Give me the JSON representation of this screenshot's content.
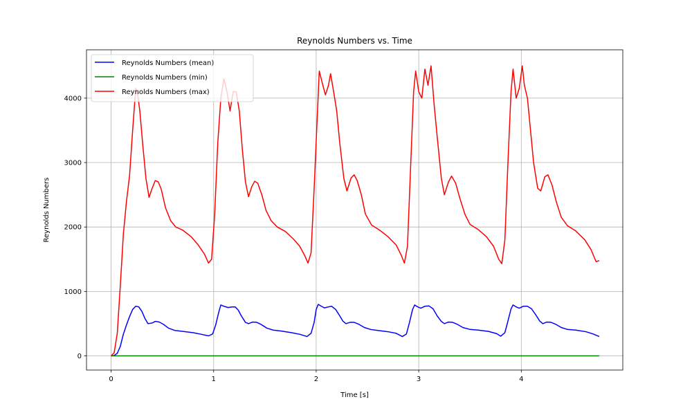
{
  "chart_data": {
    "type": "line",
    "title": "Reynolds Numbers vs. Time",
    "xlabel": "Time [s]",
    "ylabel": "Reynolds Numbers",
    "xlim": [
      -0.24,
      4.99
    ],
    "ylim": [
      -220,
      4750
    ],
    "xticks": [
      0,
      1,
      2,
      3,
      4
    ],
    "yticks": [
      0,
      1000,
      2000,
      3000,
      4000
    ],
    "grid": true,
    "legend_position": "top-left",
    "series": [
      {
        "name": "Reynolds Numbers (mean)",
        "color": "#0000ff",
        "points": [
          [
            0,
            0
          ],
          [
            0.03,
            5
          ],
          [
            0.06,
            40
          ],
          [
            0.09,
            150
          ],
          [
            0.12,
            340
          ],
          [
            0.15,
            480
          ],
          [
            0.18,
            610
          ],
          [
            0.21,
            720
          ],
          [
            0.24,
            770
          ],
          [
            0.27,
            760
          ],
          [
            0.3,
            690
          ],
          [
            0.33,
            580
          ],
          [
            0.36,
            500
          ],
          [
            0.4,
            510
          ],
          [
            0.43,
            535
          ],
          [
            0.47,
            525
          ],
          [
            0.51,
            490
          ],
          [
            0.56,
            430
          ],
          [
            0.62,
            395
          ],
          [
            0.7,
            380
          ],
          [
            0.8,
            360
          ],
          [
            0.88,
            335
          ],
          [
            0.95,
            310
          ],
          [
            0.99,
            340
          ],
          [
            1.02,
            480
          ],
          [
            1.05,
            680
          ],
          [
            1.07,
            790
          ],
          [
            1.1,
            770
          ],
          [
            1.14,
            750
          ],
          [
            1.18,
            760
          ],
          [
            1.21,
            760
          ],
          [
            1.24,
            710
          ],
          [
            1.27,
            620
          ],
          [
            1.31,
            520
          ],
          [
            1.34,
            500
          ],
          [
            1.38,
            525
          ],
          [
            1.42,
            520
          ],
          [
            1.46,
            490
          ],
          [
            1.52,
            430
          ],
          [
            1.58,
            400
          ],
          [
            1.66,
            385
          ],
          [
            1.76,
            360
          ],
          [
            1.84,
            335
          ],
          [
            1.91,
            300
          ],
          [
            1.95,
            350
          ],
          [
            1.98,
            520
          ],
          [
            2.0,
            720
          ],
          [
            2.02,
            800
          ],
          [
            2.05,
            770
          ],
          [
            2.08,
            745
          ],
          [
            2.12,
            760
          ],
          [
            2.15,
            770
          ],
          [
            2.19,
            720
          ],
          [
            2.23,
            620
          ],
          [
            2.26,
            540
          ],
          [
            2.29,
            500
          ],
          [
            2.33,
            520
          ],
          [
            2.37,
            520
          ],
          [
            2.41,
            495
          ],
          [
            2.47,
            440
          ],
          [
            2.53,
            410
          ],
          [
            2.6,
            395
          ],
          [
            2.7,
            375
          ],
          [
            2.78,
            350
          ],
          [
            2.84,
            300
          ],
          [
            2.88,
            340
          ],
          [
            2.91,
            520
          ],
          [
            2.94,
            720
          ],
          [
            2.96,
            790
          ],
          [
            2.99,
            760
          ],
          [
            3.02,
            740
          ],
          [
            3.06,
            770
          ],
          [
            3.1,
            775
          ],
          [
            3.14,
            730
          ],
          [
            3.18,
            620
          ],
          [
            3.22,
            535
          ],
          [
            3.25,
            500
          ],
          [
            3.29,
            525
          ],
          [
            3.33,
            520
          ],
          [
            3.37,
            495
          ],
          [
            3.43,
            440
          ],
          [
            3.5,
            410
          ],
          [
            3.58,
            400
          ],
          [
            3.68,
            380
          ],
          [
            3.76,
            345
          ],
          [
            3.8,
            305
          ],
          [
            3.84,
            360
          ],
          [
            3.87,
            540
          ],
          [
            3.9,
            730
          ],
          [
            3.92,
            790
          ],
          [
            3.95,
            760
          ],
          [
            3.98,
            740
          ],
          [
            4.02,
            770
          ],
          [
            4.06,
            770
          ],
          [
            4.1,
            730
          ],
          [
            4.14,
            640
          ],
          [
            4.18,
            540
          ],
          [
            4.21,
            500
          ],
          [
            4.25,
            525
          ],
          [
            4.29,
            520
          ],
          [
            4.33,
            495
          ],
          [
            4.39,
            440
          ],
          [
            4.45,
            410
          ],
          [
            4.53,
            400
          ],
          [
            4.63,
            375
          ],
          [
            4.7,
            340
          ],
          [
            4.76,
            300
          ]
        ]
      },
      {
        "name": "Reynolds Numbers (min)",
        "color": "#008000",
        "points": [
          [
            0,
            0
          ],
          [
            4.76,
            0
          ]
        ]
      },
      {
        "name": "Reynolds Numbers (max)",
        "color": "#ff0000",
        "points": [
          [
            0,
            0
          ],
          [
            0.03,
            50
          ],
          [
            0.06,
            350
          ],
          [
            0.09,
            1100
          ],
          [
            0.12,
            1900
          ],
          [
            0.15,
            2400
          ],
          [
            0.18,
            2800
          ],
          [
            0.21,
            3500
          ],
          [
            0.24,
            4150
          ],
          [
            0.26,
            4050
          ],
          [
            0.28,
            3800
          ],
          [
            0.31,
            3250
          ],
          [
            0.34,
            2750
          ],
          [
            0.37,
            2460
          ],
          [
            0.4,
            2600
          ],
          [
            0.43,
            2720
          ],
          [
            0.46,
            2700
          ],
          [
            0.49,
            2580
          ],
          [
            0.53,
            2300
          ],
          [
            0.58,
            2100
          ],
          [
            0.63,
            2000
          ],
          [
            0.7,
            1950
          ],
          [
            0.78,
            1850
          ],
          [
            0.85,
            1720
          ],
          [
            0.91,
            1580
          ],
          [
            0.95,
            1440
          ],
          [
            0.98,
            1500
          ],
          [
            1.01,
            2200
          ],
          [
            1.04,
            3300
          ],
          [
            1.07,
            4000
          ],
          [
            1.1,
            4300
          ],
          [
            1.13,
            4100
          ],
          [
            1.16,
            3800
          ],
          [
            1.19,
            4100
          ],
          [
            1.22,
            4100
          ],
          [
            1.25,
            3800
          ],
          [
            1.28,
            3200
          ],
          [
            1.31,
            2700
          ],
          [
            1.34,
            2470
          ],
          [
            1.37,
            2620
          ],
          [
            1.4,
            2710
          ],
          [
            1.43,
            2680
          ],
          [
            1.47,
            2500
          ],
          [
            1.51,
            2260
          ],
          [
            1.56,
            2100
          ],
          [
            1.62,
            2000
          ],
          [
            1.7,
            1930
          ],
          [
            1.78,
            1810
          ],
          [
            1.84,
            1700
          ],
          [
            1.89,
            1550
          ],
          [
            1.92,
            1440
          ],
          [
            1.95,
            1600
          ],
          [
            1.98,
            2600
          ],
          [
            2.01,
            3700
          ],
          [
            2.03,
            4420
          ],
          [
            2.06,
            4230
          ],
          [
            2.09,
            4050
          ],
          [
            2.12,
            4200
          ],
          [
            2.14,
            4380
          ],
          [
            2.17,
            4100
          ],
          [
            2.2,
            3800
          ],
          [
            2.23,
            3300
          ],
          [
            2.27,
            2750
          ],
          [
            2.3,
            2560
          ],
          [
            2.34,
            2760
          ],
          [
            2.37,
            2810
          ],
          [
            2.4,
            2720
          ],
          [
            2.44,
            2500
          ],
          [
            2.48,
            2200
          ],
          [
            2.54,
            2030
          ],
          [
            2.62,
            1950
          ],
          [
            2.7,
            1850
          ],
          [
            2.78,
            1720
          ],
          [
            2.83,
            1560
          ],
          [
            2.86,
            1440
          ],
          [
            2.89,
            1700
          ],
          [
            2.92,
            2900
          ],
          [
            2.95,
            4100
          ],
          [
            2.97,
            4420
          ],
          [
            3.0,
            4100
          ],
          [
            3.03,
            4000
          ],
          [
            3.06,
            4450
          ],
          [
            3.09,
            4200
          ],
          [
            3.12,
            4500
          ],
          [
            3.15,
            3900
          ],
          [
            3.18,
            3400
          ],
          [
            3.22,
            2760
          ],
          [
            3.25,
            2500
          ],
          [
            3.29,
            2700
          ],
          [
            3.32,
            2790
          ],
          [
            3.36,
            2680
          ],
          [
            3.4,
            2450
          ],
          [
            3.45,
            2200
          ],
          [
            3.5,
            2040
          ],
          [
            3.58,
            1960
          ],
          [
            3.66,
            1850
          ],
          [
            3.73,
            1700
          ],
          [
            3.78,
            1500
          ],
          [
            3.81,
            1430
          ],
          [
            3.84,
            1800
          ],
          [
            3.87,
            3000
          ],
          [
            3.9,
            4100
          ],
          [
            3.92,
            4450
          ],
          [
            3.95,
            4000
          ],
          [
            3.98,
            4150
          ],
          [
            4.01,
            4500
          ],
          [
            4.03,
            4200
          ],
          [
            4.06,
            4000
          ],
          [
            4.09,
            3500
          ],
          [
            4.12,
            3000
          ],
          [
            4.16,
            2600
          ],
          [
            4.19,
            2560
          ],
          [
            4.23,
            2780
          ],
          [
            4.26,
            2810
          ],
          [
            4.3,
            2650
          ],
          [
            4.34,
            2400
          ],
          [
            4.39,
            2150
          ],
          [
            4.45,
            2020
          ],
          [
            4.53,
            1940
          ],
          [
            4.62,
            1800
          ],
          [
            4.68,
            1650
          ],
          [
            4.73,
            1460
          ],
          [
            4.76,
            1480
          ]
        ]
      }
    ]
  }
}
